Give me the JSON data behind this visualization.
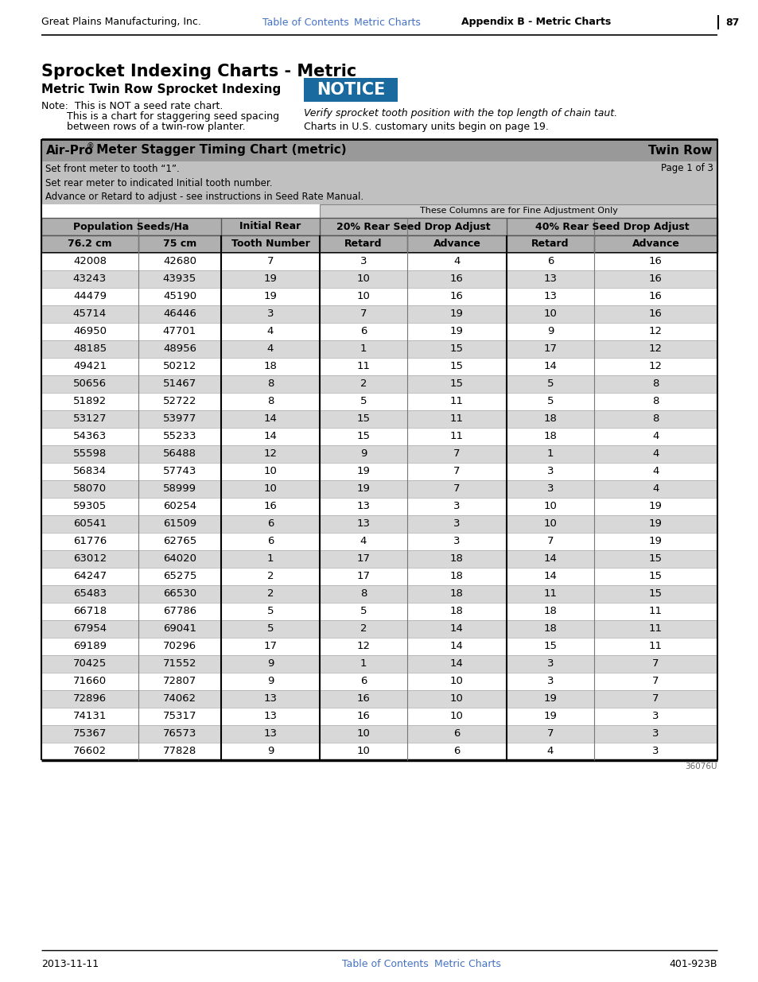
{
  "page_header_left": "Great Plains Manufacturing, Inc.",
  "page_header_center_link1": "Table of Contents",
  "page_header_center_link2": "Metric Charts",
  "page_header_right": "Appendix B - Metric Charts",
  "page_header_page": "87",
  "main_title": "Sprocket Indexing Charts - Metric",
  "sub_title": "Metric Twin Row Sprocket Indexing",
  "notice_text": "NOTICE",
  "note_line1": "Note:  This is NOT a seed rate chart.",
  "note_line2": "        This is a chart for staggering seed spacing",
  "note_line3": "        between rows of a twin-row planter.",
  "notice_right1": "Verify sprocket tooth position with the top length of chain taut.",
  "notice_right2": "Charts in U.S. customary units begin on page 19.",
  "table_header_left1": "Air-Pro",
  "table_header_left2": " Meter Stagger Timing Chart (metric)",
  "table_header_right": "Twin Row",
  "table_sub1_left": "Set front meter to tooth “1”.",
  "table_sub1_right": "Page 1 of 3",
  "table_sub2": "Set rear meter to indicated Initial tooth number.",
  "table_sub3": "Advance or Retard to adjust - see instructions in Seed Rate Manual.",
  "fine_adj_label": "These Columns are for Fine Adjustment Only",
  "col_sub_headers": [
    "76.2 cm",
    "75 cm",
    "Tooth Number",
    "Retard",
    "Advance",
    "Retard",
    "Advance"
  ],
  "table_data": [
    [
      "42008",
      "42680",
      "7",
      "3",
      "4",
      "6",
      "16"
    ],
    [
      "43243",
      "43935",
      "19",
      "10",
      "16",
      "13",
      "16"
    ],
    [
      "44479",
      "45190",
      "19",
      "10",
      "16",
      "13",
      "16"
    ],
    [
      "45714",
      "46446",
      "3",
      "7",
      "19",
      "10",
      "16"
    ],
    [
      "46950",
      "47701",
      "4",
      "6",
      "19",
      "9",
      "12"
    ],
    [
      "48185",
      "48956",
      "4",
      "1",
      "15",
      "17",
      "12"
    ],
    [
      "49421",
      "50212",
      "18",
      "11",
      "15",
      "14",
      "12"
    ],
    [
      "50656",
      "51467",
      "8",
      "2",
      "15",
      "5",
      "8"
    ],
    [
      "51892",
      "52722",
      "8",
      "5",
      "11",
      "5",
      "8"
    ],
    [
      "53127",
      "53977",
      "14",
      "15",
      "11",
      "18",
      "8"
    ],
    [
      "54363",
      "55233",
      "14",
      "15",
      "11",
      "18",
      "4"
    ],
    [
      "55598",
      "56488",
      "12",
      "9",
      "7",
      "1",
      "4"
    ],
    [
      "56834",
      "57743",
      "10",
      "19",
      "7",
      "3",
      "4"
    ],
    [
      "58070",
      "58999",
      "10",
      "19",
      "7",
      "3",
      "4"
    ],
    [
      "59305",
      "60254",
      "16",
      "13",
      "3",
      "10",
      "19"
    ],
    [
      "60541",
      "61509",
      "6",
      "13",
      "3",
      "10",
      "19"
    ],
    [
      "61776",
      "62765",
      "6",
      "4",
      "3",
      "7",
      "19"
    ],
    [
      "63012",
      "64020",
      "1",
      "17",
      "18",
      "14",
      "15"
    ],
    [
      "64247",
      "65275",
      "2",
      "17",
      "18",
      "14",
      "15"
    ],
    [
      "65483",
      "66530",
      "2",
      "8",
      "18",
      "11",
      "15"
    ],
    [
      "66718",
      "67786",
      "5",
      "5",
      "18",
      "18",
      "11"
    ],
    [
      "67954",
      "69041",
      "5",
      "2",
      "14",
      "18",
      "11"
    ],
    [
      "69189",
      "70296",
      "17",
      "12",
      "14",
      "15",
      "11"
    ],
    [
      "70425",
      "71552",
      "9",
      "1",
      "14",
      "3",
      "7"
    ],
    [
      "71660",
      "72807",
      "9",
      "6",
      "10",
      "3",
      "7"
    ],
    [
      "72896",
      "74062",
      "13",
      "16",
      "10",
      "19",
      "7"
    ],
    [
      "74131",
      "75317",
      "13",
      "16",
      "10",
      "19",
      "3"
    ],
    [
      "75367",
      "76573",
      "13",
      "10",
      "6",
      "7",
      "3"
    ],
    [
      "76602",
      "77828",
      "9",
      "10",
      "6",
      "4",
      "3"
    ]
  ],
  "footer_left": "2013-11-11",
  "footer_center_link1": "Table of Contents",
  "footer_center_link2": "Metric Charts",
  "footer_right": "401-923B",
  "doc_number": "36076U",
  "bg_color": "#ffffff",
  "table_header_bg": "#999999",
  "table_sub_bg": "#c0c0c0",
  "col_hdr_bg": "#b0b0b0",
  "row_odd_bg": "#d8d8d8",
  "row_even_bg": "#ffffff",
  "link_color": "#4472c4",
  "notice_bg": "#1a6aa0",
  "notice_text_color": "#ffffff"
}
